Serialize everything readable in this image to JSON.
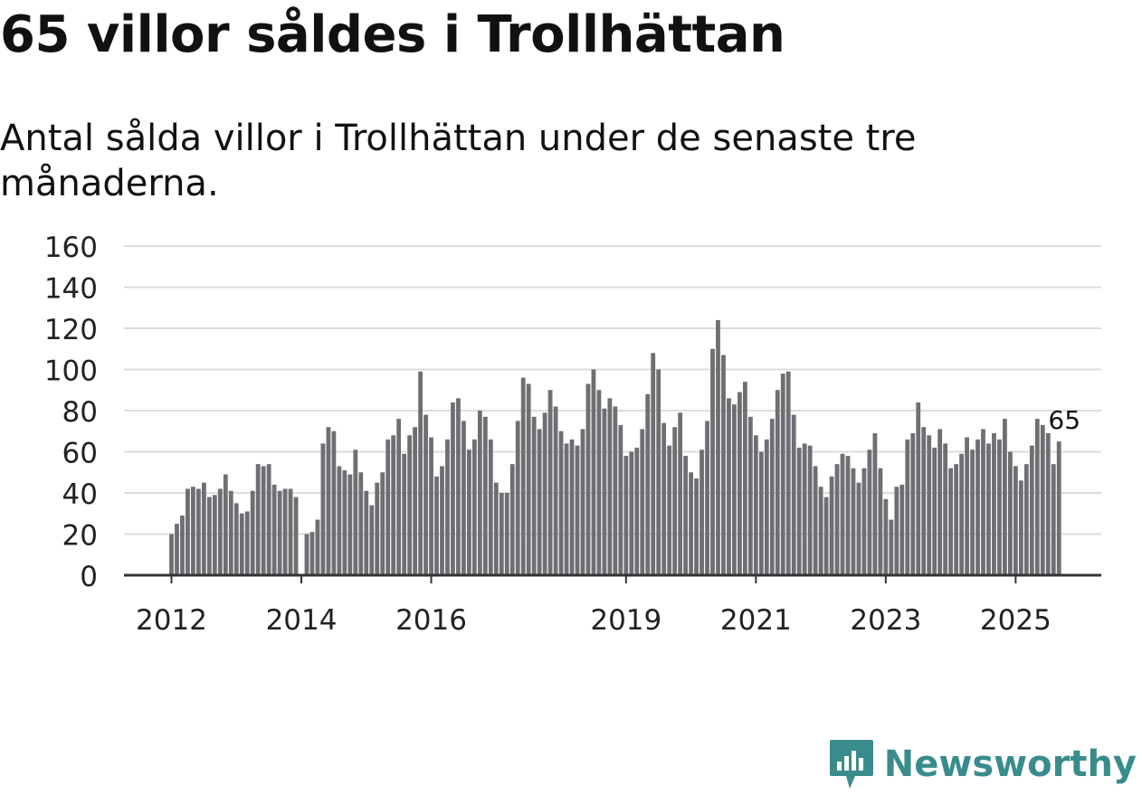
{
  "title": "65 villor såldes i Trollhättan",
  "subtitle": "Antal sålda villor i Trollhättan under de senaste tre månaderna.",
  "brand": {
    "name": "Newsworthy",
    "icon": "newsworthy-logo-icon",
    "color": "#3a8c8c"
  },
  "colors": {
    "bar": "#6e6e73",
    "highlight": "#1aa39a",
    "grid": "#dcdcdc",
    "axis": "#333333",
    "text": "#222222"
  },
  "chart_data": {
    "type": "bar",
    "title": "65 villor såldes i Trollhättan",
    "xlabel": "",
    "ylabel": "",
    "ylim": [
      0,
      160
    ],
    "yticks": [
      0,
      20,
      40,
      60,
      80,
      100,
      120,
      140,
      160
    ],
    "grid": true,
    "legend": "none",
    "start_year": 2012,
    "start_month": 1,
    "frequency": "monthly",
    "xticks": [
      {
        "label": "2012",
        "index": 0
      },
      {
        "label": "2014",
        "index": 24
      },
      {
        "label": "2016",
        "index": 48
      },
      {
        "label": "2019",
        "index": 84
      },
      {
        "label": "2021",
        "index": 108
      },
      {
        "label": "2023",
        "index": 132
      },
      {
        "label": "2025",
        "index": 156
      }
    ],
    "values": [
      20,
      25,
      29,
      42,
      43,
      42,
      45,
      38,
      39,
      42,
      49,
      41,
      35,
      30,
      31,
      41,
      54,
      53,
      54,
      44,
      41,
      42,
      42,
      38,
      null,
      20,
      21,
      27,
      64,
      72,
      70,
      53,
      51,
      49,
      61,
      50,
      41,
      34,
      45,
      50,
      66,
      68,
      76,
      59,
      68,
      72,
      99,
      78,
      67,
      48,
      53,
      66,
      84,
      86,
      75,
      61,
      66,
      80,
      77,
      66,
      45,
      40,
      40,
      54,
      75,
      96,
      93,
      77,
      71,
      79,
      90,
      82,
      70,
      64,
      66,
      63,
      71,
      93,
      100,
      90,
      81,
      86,
      82,
      73,
      58,
      60,
      62,
      71,
      88,
      108,
      100,
      74,
      63,
      72,
      79,
      58,
      50,
      47,
      61,
      75,
      110,
      124,
      107,
      86,
      83,
      89,
      94,
      77,
      68,
      60,
      66,
      76,
      90,
      98,
      99,
      78,
      62,
      64,
      63,
      53,
      43,
      38,
      48,
      54,
      59,
      58,
      52,
      45,
      52,
      61,
      69,
      52,
      37,
      27,
      43,
      44,
      66,
      69,
      84,
      72,
      68,
      62,
      71,
      64,
      52,
      54,
      59,
      67,
      61,
      66,
      71,
      64,
      69,
      66,
      76,
      60,
      53,
      46,
      54,
      63,
      76,
      73,
      69,
      54,
      65
    ],
    "highlight_index": 165,
    "data_labels": [
      {
        "index": 165,
        "value": 65,
        "text": "65"
      }
    ]
  }
}
